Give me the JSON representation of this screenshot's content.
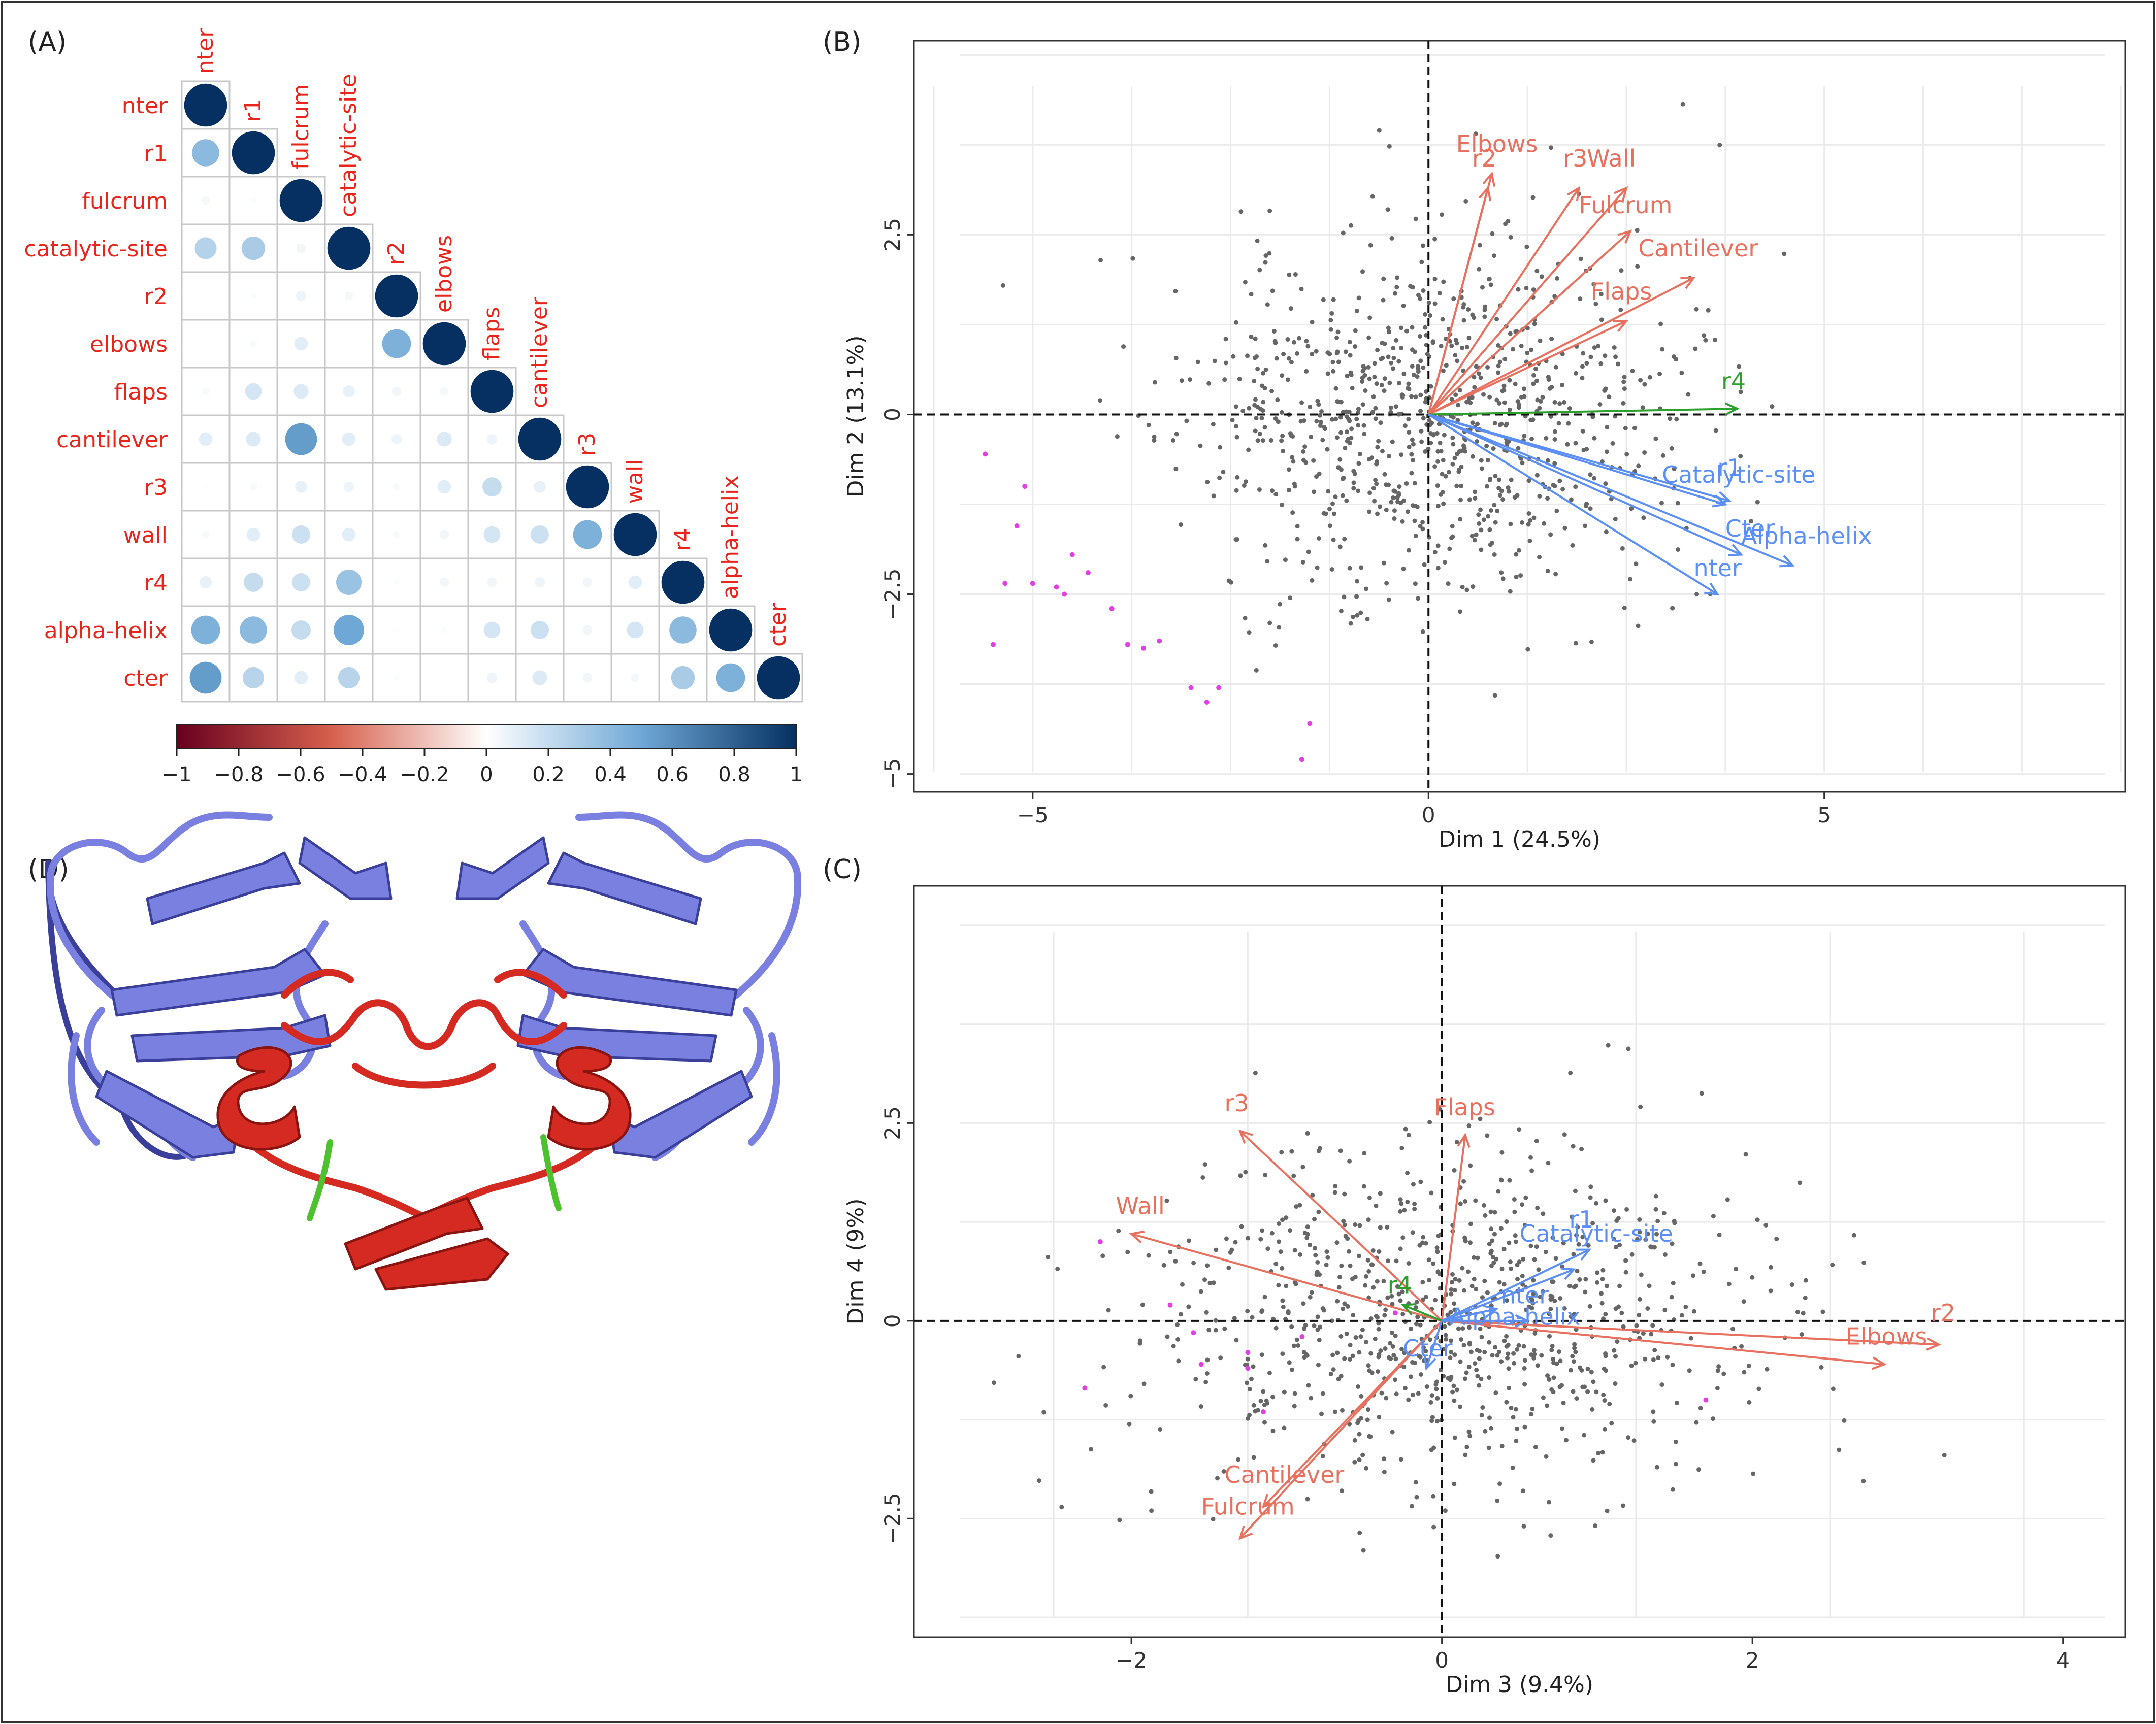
{
  "panels": {
    "A": {
      "label": "(A)"
    },
    "B": {
      "label": "(B)"
    },
    "C": {
      "label": "(C)"
    },
    "D": {
      "label": "(D)"
    }
  },
  "colors": {
    "red_variable": "#e8705e",
    "blue_variable": "#5b8ff5",
    "green_variable": "#2ca02c",
    "ind_point": "#666666",
    "outlier_point": "#e040e0",
    "corr_label": "#e8251b",
    "protein_blue": "#7a80e0",
    "protein_red": "#d42a22",
    "protein_green": "#4dc22e"
  },
  "chart_data": [
    {
      "panel": "A",
      "type": "heatmap",
      "subtype": "correlation-lower-triangle",
      "variables": [
        "nter",
        "r1",
        "fulcrum",
        "catalytic-site",
        "r2",
        "elbows",
        "flaps",
        "cantilever",
        "r3",
        "wall",
        "r4",
        "alpha-helix",
        "cter"
      ],
      "matrix": [
        [
          1.0
        ],
        [
          0.4,
          1.0
        ],
        [
          0.04,
          0.02,
          1.0
        ],
        [
          0.26,
          0.3,
          0.05,
          1.0
        ],
        [
          0.01,
          0.02,
          0.06,
          0.04,
          1.0
        ],
        [
          0.01,
          0.03,
          0.1,
          0.01,
          0.45,
          1.0
        ],
        [
          0.03,
          0.15,
          0.12,
          0.08,
          0.05,
          0.04,
          1.0
        ],
        [
          0.1,
          0.12,
          0.55,
          0.1,
          0.06,
          0.12,
          0.06,
          1.0
        ],
        [
          0.01,
          0.03,
          0.08,
          0.06,
          0.03,
          0.1,
          0.2,
          0.08,
          1.0
        ],
        [
          0.03,
          0.1,
          0.18,
          0.1,
          0.03,
          0.05,
          0.15,
          0.18,
          0.45,
          1.0
        ],
        [
          0.08,
          0.2,
          0.18,
          0.35,
          0.02,
          0.05,
          0.05,
          0.06,
          0.05,
          0.1,
          1.0
        ],
        [
          0.45,
          0.4,
          0.2,
          0.5,
          0.01,
          0.02,
          0.15,
          0.18,
          0.05,
          0.15,
          0.4,
          1.0
        ],
        [
          0.55,
          0.25,
          0.1,
          0.25,
          0.02,
          0.0,
          0.06,
          0.12,
          0.05,
          0.04,
          0.3,
          0.45,
          1.0
        ]
      ],
      "colorbar": {
        "ticks": [
          -1,
          -0.8,
          -0.6,
          -0.4,
          -0.2,
          0,
          0.2,
          0.4,
          0.6,
          0.8,
          1
        ],
        "tick_labels": [
          "−1",
          "−0.8",
          "−0.6",
          "−0.4",
          "−0.2",
          "0",
          "0.2",
          "0.4",
          "0.6",
          "0.8",
          "1"
        ],
        "low_color": "#67001f",
        "mid_color": "#ffffff",
        "high_color": "#053061"
      }
    },
    {
      "panel": "B",
      "type": "scatter",
      "subtype": "pca-biplot",
      "xlabel": "Dim 1 (24.5%)",
      "ylabel": "Dim 2 (13.1%)",
      "xlim": [
        -6.5,
        8.8
      ],
      "ylim": [
        -5.25,
        5.2
      ],
      "xticks": [
        -5,
        0,
        5
      ],
      "xtick_labels": [
        "−5",
        "0",
        "5"
      ],
      "yticks": [
        -5,
        -2.5,
        0,
        2.5
      ],
      "ytick_labels": [
        "−5",
        "−2.5",
        "0",
        "2.5"
      ],
      "n_points": 900,
      "point_sd": [
        1.55,
        1.25
      ],
      "seed": 11,
      "outliers": [
        [
          -5.6,
          -0.55
        ],
        [
          -5.1,
          -1.0
        ],
        [
          -5.2,
          -1.55
        ],
        [
          -5.35,
          -2.35
        ],
        [
          -5.0,
          -2.35
        ],
        [
          -4.7,
          -2.4
        ],
        [
          -4.5,
          -1.95
        ],
        [
          -4.3,
          -2.2
        ],
        [
          -4.6,
          -2.5
        ],
        [
          -5.5,
          -3.2
        ],
        [
          -4.0,
          -2.7
        ],
        [
          -3.8,
          -3.2
        ],
        [
          -3.6,
          -3.25
        ],
        [
          -3.4,
          -3.15
        ],
        [
          -3.0,
          -3.8
        ],
        [
          -2.8,
          -4.0
        ],
        [
          -2.65,
          -3.8
        ],
        [
          -1.5,
          -4.3
        ],
        [
          -1.6,
          -4.8
        ]
      ],
      "vectors": [
        {
          "name": "Elbows",
          "x": 0.8,
          "y": 3.35,
          "group": "red"
        },
        {
          "name": "r2",
          "x": 0.75,
          "y": 3.15,
          "group": "red"
        },
        {
          "name": "r3",
          "x": 1.9,
          "y": 3.15,
          "group": "red"
        },
        {
          "name": "Wall",
          "x": 2.5,
          "y": 3.15,
          "group": "red"
        },
        {
          "name": "Fulcrum",
          "x": 2.55,
          "y": 2.55,
          "group": "red"
        },
        {
          "name": "Cantilever",
          "x": 3.35,
          "y": 1.9,
          "group": "red"
        },
        {
          "name": "Flaps",
          "x": 2.5,
          "y": 1.3,
          "group": "red"
        },
        {
          "name": "r4",
          "x": 3.9,
          "y": 0.08,
          "group": "green"
        },
        {
          "name": "r1",
          "x": 3.8,
          "y": -1.2,
          "group": "blue"
        },
        {
          "name": "Catalytic-site",
          "x": 3.75,
          "y": -1.25,
          "group": "blue"
        },
        {
          "name": "Cter",
          "x": 3.95,
          "y": -1.95,
          "group": "blue"
        },
        {
          "name": "Alpha-helix",
          "x": 4.6,
          "y": -2.1,
          "group": "blue"
        },
        {
          "name": "nter",
          "x": 3.65,
          "y": -2.5,
          "group": "blue"
        }
      ],
      "vector_labels": [
        {
          "name": "Elbows",
          "x": 0.35,
          "y": 3.65
        },
        {
          "name": "r2",
          "x": 0.55,
          "y": 3.45
        },
        {
          "name": "r3",
          "x": 1.7,
          "y": 3.45
        },
        {
          "name": "Wall",
          "x": 2.0,
          "y": 3.45
        },
        {
          "name": "Fulcrum",
          "x": 1.9,
          "y": 2.8
        },
        {
          "name": "Cantilever",
          "x": 2.65,
          "y": 2.2
        },
        {
          "name": "Flaps",
          "x": 2.05,
          "y": 1.6
        },
        {
          "name": "r4",
          "x": 3.7,
          "y": 0.35
        },
        {
          "name": "Catalytic-site",
          "x": 2.95,
          "y": -0.95
        },
        {
          "name": "r1",
          "x": 3.65,
          "y": -0.85
        },
        {
          "name": "Cter",
          "x": 3.75,
          "y": -1.7
        },
        {
          "name": "Alpha-helix",
          "x": 3.95,
          "y": -1.8
        },
        {
          "name": "nter",
          "x": 3.35,
          "y": -2.25
        }
      ]
    },
    {
      "panel": "C",
      "type": "scatter",
      "subtype": "pca-biplot",
      "xlabel": "Dim 3 (9.4%)",
      "ylabel": "Dim 4 (9%)",
      "xlim": [
        -3.4,
        4.4
      ],
      "ylim": [
        -4.0,
        5.5
      ],
      "xticks": [
        -2,
        0,
        2,
        4
      ],
      "xtick_labels": [
        "−2",
        "0",
        "2",
        "4"
      ],
      "yticks": [
        -2.5,
        0,
        2.5
      ],
      "ytick_labels": [
        "−2.5",
        "0",
        "2.5"
      ],
      "n_points": 900,
      "point_sd": [
        0.95,
        1.05
      ],
      "seed": 23,
      "outliers": [
        [
          -2.2,
          1.0
        ],
        [
          -1.75,
          0.2
        ],
        [
          -1.6,
          -0.15
        ],
        [
          -1.25,
          -0.4
        ],
        [
          -1.15,
          -1.15
        ],
        [
          -1.25,
          -0.6
        ],
        [
          -1.55,
          -0.55
        ],
        [
          -2.3,
          -0.85
        ],
        [
          -0.9,
          -0.2
        ],
        [
          -0.3,
          0.1
        ],
        [
          1.7,
          -1.0
        ]
      ],
      "vectors": [
        {
          "name": "r3",
          "x": -1.3,
          "y": 2.4,
          "group": "red"
        },
        {
          "name": "Flaps",
          "x": 0.15,
          "y": 2.35,
          "group": "red"
        },
        {
          "name": "Wall",
          "x": -2.0,
          "y": 1.1,
          "group": "red"
        },
        {
          "name": "r2",
          "x": 3.2,
          "y": -0.3,
          "group": "red"
        },
        {
          "name": "Elbows",
          "x": 2.85,
          "y": -0.55,
          "group": "red"
        },
        {
          "name": "Cantilever",
          "x": -1.15,
          "y": -2.35,
          "group": "red"
        },
        {
          "name": "Fulcrum",
          "x": -1.3,
          "y": -2.75,
          "group": "red"
        },
        {
          "name": "r4",
          "x": -0.25,
          "y": 0.2,
          "group": "green"
        },
        {
          "name": "r1",
          "x": 0.95,
          "y": 0.9,
          "group": "blue"
        },
        {
          "name": "Catalytic-site",
          "x": 0.85,
          "y": 0.65,
          "group": "blue"
        },
        {
          "name": "nter",
          "x": 0.35,
          "y": 0.15,
          "group": "blue"
        },
        {
          "name": "Alpha-helix",
          "x": 0.55,
          "y": 0.0,
          "group": "blue"
        },
        {
          "name": "Cter",
          "x": -0.1,
          "y": -0.6,
          "group": "blue"
        }
      ],
      "vector_labels": [
        {
          "name": "r3",
          "x": -1.4,
          "y": 2.65
        },
        {
          "name": "Flaps",
          "x": -0.05,
          "y": 2.6
        },
        {
          "name": "Wall",
          "x": -2.1,
          "y": 1.35
        },
        {
          "name": "Catalytic-site",
          "x": 0.5,
          "y": 1.0
        },
        {
          "name": "r1",
          "x": 0.82,
          "y": 1.18
        },
        {
          "name": "r4",
          "x": -0.35,
          "y": 0.35
        },
        {
          "name": "nter",
          "x": 0.38,
          "y": 0.22
        },
        {
          "name": "Alpha-helix",
          "x": 0.05,
          "y": -0.05
        },
        {
          "name": "Cter",
          "x": -0.25,
          "y": -0.45
        },
        {
          "name": "r2",
          "x": 3.15,
          "y": 0.0
        },
        {
          "name": "Elbows",
          "x": 2.6,
          "y": -0.3
        },
        {
          "name": "Cantilever",
          "x": -1.4,
          "y": -2.05
        },
        {
          "name": "Fulcrum",
          "x": -1.55,
          "y": -2.45
        }
      ]
    }
  ]
}
